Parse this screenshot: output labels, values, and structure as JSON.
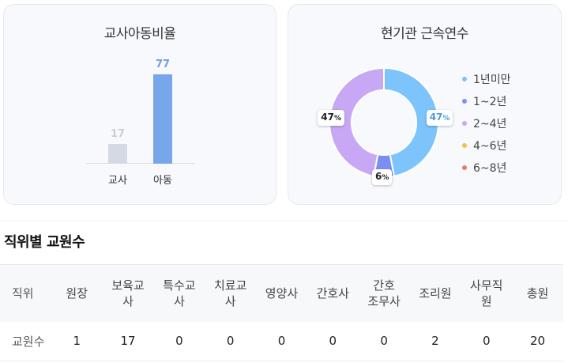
{
  "ratio_card": {
    "title": "교사아동비율",
    "chart_data": {
      "type": "bar",
      "categories": [
        "교사",
        "아동"
      ],
      "values": [
        17,
        77
      ],
      "colors": [
        "#d5d9e3",
        "#78a6ea"
      ],
      "value_label_colors": [
        "#c8ccd6",
        "#6f9ee6"
      ]
    }
  },
  "tenure_card": {
    "title": "현기관 근속연수",
    "chart_data": {
      "type": "pie",
      "categories": [
        "1년미만",
        "1~2년",
        "2~4년",
        "4~6년",
        "6~8년"
      ],
      "values": [
        47,
        6,
        47,
        0,
        0
      ],
      "colors": [
        "#7cc4fb",
        "#7b8ef3",
        "#c8a8f4",
        "#f4c142",
        "#ef7b5e"
      ],
      "labels": [
        "47",
        "6",
        "47"
      ],
      "label_unit": "%"
    }
  },
  "staff_table": {
    "title": "직위별 교원수",
    "headers": [
      "직위",
      "원장",
      "보육교\n사",
      "특수교\n사",
      "치료교\n사",
      "영양사",
      "간호사",
      "간호\n조무사",
      "조리원",
      "사무직\n원",
      "총원"
    ],
    "rows": [
      [
        "교원수",
        "1",
        "17",
        "0",
        "0",
        "0",
        "0",
        "0",
        "2",
        "0",
        "20"
      ]
    ]
  }
}
